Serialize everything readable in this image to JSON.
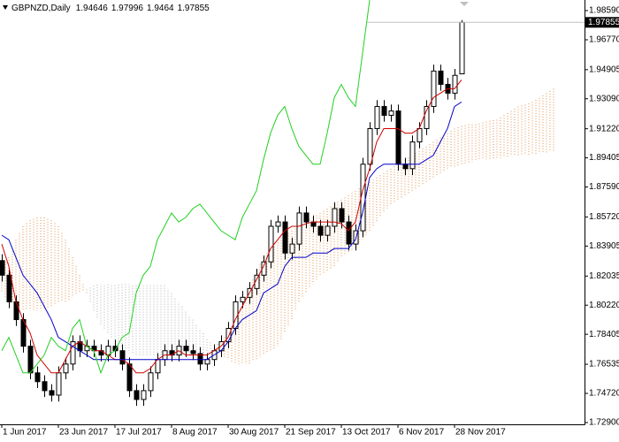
{
  "chart_data": {
    "type": "candlestick",
    "title": "GBPNZD,Daily",
    "categories": [
      "1 Jun 2017",
      null,
      null,
      null,
      null,
      null,
      null,
      null,
      "23 Jun 2017",
      null,
      null,
      null,
      null,
      null,
      null,
      null,
      "17 Jul 2017",
      null,
      null,
      null,
      null,
      null,
      null,
      null,
      "8 Aug 2017",
      null,
      null,
      null,
      null,
      null,
      null,
      null,
      "30 Aug 2017",
      null,
      null,
      null,
      null,
      null,
      null,
      null,
      "21 Sep 2017",
      null,
      null,
      null,
      null,
      null,
      null,
      null,
      "13 Oct 2017",
      null,
      null,
      null,
      null,
      null,
      null,
      null,
      "6 Nov 2017",
      null,
      null,
      null,
      null,
      null,
      null,
      null,
      "28 Nov 2017",
      null
    ],
    "open": [
      1.83,
      1.8209,
      1.8043,
      1.7932,
      1.7766,
      1.76,
      1.7545,
      1.7489,
      1.7461,
      1.76,
      1.7655,
      1.7794,
      1.7738,
      1.7766,
      1.7738,
      1.7711,
      1.7766,
      1.7738,
      1.7655,
      1.7489,
      1.7434,
      1.7489,
      1.76,
      1.7683,
      1.7738,
      1.7711,
      1.7766,
      1.7738,
      1.772,
      1.7655,
      1.7683,
      1.7738,
      1.7794,
      1.7877,
      1.8043,
      1.8071,
      1.8126,
      1.8209,
      1.8292,
      1.8514,
      1.8541,
      1.8347,
      1.8403,
      1.8597,
      1.8541,
      1.8514,
      1.8458,
      1.8514,
      1.8624,
      1.8541,
      1.8403,
      1.8486,
      1.8901,
      1.9123,
      1.9261,
      1.9206,
      1.9233,
      1.8901,
      1.8873,
      1.904,
      1.9123,
      1.9261,
      1.9482,
      1.9399,
      1.9344,
      1.94646
    ],
    "high": [
      1.834,
      1.8249,
      1.8083,
      1.7972,
      1.7806,
      1.764,
      1.7585,
      1.7529,
      1.764,
      1.7695,
      1.7834,
      1.7834,
      1.7806,
      1.7806,
      1.7778,
      1.7806,
      1.7806,
      1.7778,
      1.7695,
      1.7529,
      1.7529,
      1.764,
      1.7723,
      1.7778,
      1.7778,
      1.7806,
      1.7806,
      1.7778,
      1.776,
      1.7723,
      1.7778,
      1.7834,
      1.7917,
      1.8083,
      1.8111,
      1.8166,
      1.8249,
      1.8332,
      1.8554,
      1.8581,
      1.8581,
      1.8443,
      1.8637,
      1.8637,
      1.8581,
      1.8554,
      1.8554,
      1.8664,
      1.8664,
      1.8581,
      1.8526,
      1.8941,
      1.9163,
      1.9301,
      1.9301,
      1.9273,
      1.9273,
      1.8941,
      1.908,
      1.9163,
      1.9301,
      1.9522,
      1.9522,
      1.9439,
      1.9495,
      1.97996
    ],
    "low": [
      1.8169,
      1.8003,
      1.7892,
      1.7726,
      1.756,
      1.7505,
      1.7449,
      1.7421,
      1.7421,
      1.756,
      1.7615,
      1.7698,
      1.7698,
      1.7698,
      1.7671,
      1.7671,
      1.7698,
      1.7615,
      1.7449,
      1.7394,
      1.7394,
      1.7449,
      1.756,
      1.7643,
      1.7671,
      1.7671,
      1.7698,
      1.768,
      1.7615,
      1.7615,
      1.7643,
      1.7698,
      1.7754,
      1.7837,
      1.8003,
      1.8031,
      1.8086,
      1.8169,
      1.8252,
      1.8474,
      1.8307,
      1.8307,
      1.8363,
      1.8501,
      1.8474,
      1.8418,
      1.8418,
      1.8474,
      1.8501,
      1.8363,
      1.8363,
      1.8446,
      1.8861,
      1.9083,
      1.9166,
      1.9166,
      1.8861,
      1.8833,
      1.8833,
      1.9,
      1.9083,
      1.9221,
      1.9359,
      1.9304,
      1.9304,
      1.9464
    ],
    "close": [
      1.8209,
      1.8043,
      1.7932,
      1.7766,
      1.76,
      1.7545,
      1.7489,
      1.7461,
      1.76,
      1.7655,
      1.7794,
      1.7738,
      1.7766,
      1.7738,
      1.7711,
      1.7766,
      1.7738,
      1.7655,
      1.7489,
      1.7434,
      1.7489,
      1.76,
      1.7683,
      1.7738,
      1.7711,
      1.7766,
      1.7738,
      1.772,
      1.7655,
      1.7683,
      1.7738,
      1.7794,
      1.7877,
      1.8043,
      1.8071,
      1.8126,
      1.8209,
      1.8292,
      1.8514,
      1.8541,
      1.8347,
      1.8403,
      1.8597,
      1.8541,
      1.8514,
      1.8458,
      1.8514,
      1.8624,
      1.8541,
      1.8403,
      1.8486,
      1.8901,
      1.9123,
      1.9261,
      1.9206,
      1.9233,
      1.8901,
      1.8873,
      1.904,
      1.9123,
      1.9261,
      1.9482,
      1.9399,
      1.9344,
      1.9455,
      1.97855
    ],
    "bull_color": "#ffffff",
    "bear_color": "#000000",
    "series": [
      {
        "color": "#d00000",
        "values": [
          1.8403,
          1.8264,
          1.8043,
          1.7932,
          1.7849,
          1.7711,
          1.7655,
          1.76,
          1.76,
          1.7683,
          1.7766,
          1.7794,
          1.7766,
          1.7738,
          1.7738,
          1.7711,
          1.7683,
          1.7683,
          1.7655,
          1.76,
          1.76,
          1.7627,
          1.7683,
          1.7711,
          1.7711,
          1.7738,
          1.7711,
          1.7711,
          1.7711,
          1.7711,
          1.7738,
          1.7766,
          1.7821,
          1.7932,
          1.8015,
          1.8098,
          1.8181,
          1.8264,
          1.8375,
          1.843,
          1.8486,
          1.8514,
          1.8514,
          1.853,
          1.8541,
          1.8541,
          1.8541,
          1.8541,
          1.853,
          1.8486,
          1.8541,
          1.8735,
          1.8873,
          1.904,
          1.9123,
          1.9123,
          1.9123,
          1.9095,
          1.9095,
          1.9123,
          1.9233,
          1.9316,
          1.9344,
          1.9372,
          1.9372,
          1.9427
        ]
      },
      {
        "color": "#0000c8",
        "values": [
          1.8458,
          1.843,
          1.832,
          1.8209,
          1.8154,
          1.8098,
          1.8015,
          1.7932,
          1.7821,
          1.7794,
          1.7766,
          1.7738,
          1.7711,
          1.7683,
          1.7683,
          1.7683,
          1.7683,
          1.7683,
          1.7683,
          1.7683,
          1.7683,
          1.7683,
          1.7683,
          1.7683,
          1.7683,
          1.7683,
          1.7683,
          1.7683,
          1.7683,
          1.7683,
          1.7711,
          1.7738,
          1.7794,
          1.7877,
          1.7932,
          1.796,
          1.7988,
          1.8098,
          1.8126,
          1.8154,
          1.8264,
          1.832,
          1.832,
          1.832,
          1.8347,
          1.8347,
          1.8347,
          1.8375,
          1.8375,
          1.8375,
          1.843,
          1.8597,
          1.8818,
          1.8873,
          1.8901,
          1.8901,
          1.8901,
          1.8901,
          1.8901,
          1.8901,
          1.8929,
          1.8956,
          1.904,
          1.9123,
          1.9261,
          1.9289
        ]
      },
      {
        "color": "#22d022",
        "values": [
          1.7738,
          1.7821,
          1.7711,
          1.76,
          1.76,
          1.7655,
          1.7711,
          1.7821,
          1.7766,
          1.7738,
          1.7877,
          1.7932,
          1.7766,
          1.7738,
          1.76,
          1.7711,
          1.7738,
          1.7821,
          1.7849,
          1.8098,
          1.8209,
          1.8264,
          1.843,
          1.8514,
          1.8597,
          1.8541,
          1.8569,
          1.8624,
          1.8652,
          1.8597,
          1.8541,
          1.8486,
          1.8458,
          1.843,
          1.8569,
          1.8652,
          1.8735,
          1.8929,
          1.9095,
          1.9206,
          1.9261,
          1.9123,
          1.9012,
          1.8956,
          1.8901,
          1.8901,
          1.9095,
          1.9316,
          1.9399,
          1.9316,
          1.9261,
          1.9593,
          1.9925,
          null,
          null,
          null,
          null,
          null,
          null,
          null,
          null,
          null,
          null,
          null,
          null,
          null
        ]
      }
    ],
    "cloud": {
      "colors": [
        "#e0904a",
        "#b0b0b0"
      ],
      "span_a": [
        1.8264,
        1.832,
        1.843,
        1.8514,
        1.8552,
        1.8569,
        1.8569,
        1.8552,
        1.8514,
        1.843,
        1.832,
        1.8209,
        1.8098,
        1.7988,
        1.7904,
        1.7849,
        1.7794,
        1.7766,
        1.7738,
        1.7711,
        1.7711,
        1.7711,
        1.7711,
        1.7711,
        1.7711,
        1.7711,
        1.7711,
        1.7711,
        1.7711,
        1.7738,
        1.7766,
        1.7794,
        1.7849,
        1.7932,
        1.8015,
        1.8126,
        1.8237,
        1.832,
        1.8375,
        1.843,
        1.8458,
        1.8486,
        1.8514,
        1.8541,
        1.8569,
        1.8597,
        1.8624,
        1.8652,
        1.868,
        1.8707,
        1.8735,
        1.8763,
        1.879,
        1.8818,
        1.8846,
        1.8873,
        1.8901,
        1.8929,
        1.8956,
        1.8984,
        1.9012,
        1.904,
        1.9067,
        1.9095,
        1.9123,
        1.9139,
        1.915,
        1.915,
        1.9161,
        1.9172,
        1.9178,
        1.9206,
        1.9233,
        1.9261,
        1.9272,
        1.9289,
        1.9316,
        1.9344,
        1.9372
      ],
      "span_b": [
        1.8098,
        1.8043,
        1.8015,
        1.7988,
        1.7988,
        1.7988,
        1.7988,
        1.8015,
        1.8043,
        1.8043,
        1.8071,
        1.8098,
        1.8126,
        1.8154,
        1.8154,
        1.8154,
        1.8154,
        1.8154,
        1.8154,
        1.8154,
        1.8154,
        1.8154,
        1.8154,
        1.8154,
        1.8098,
        1.8043,
        1.7988,
        1.7932,
        1.7877,
        1.7821,
        1.7766,
        1.7711,
        1.7683,
        1.7655,
        1.7655,
        1.7655,
        1.7683,
        1.7711,
        1.7738,
        1.7766,
        1.7849,
        1.7932,
        1.8043,
        1.8098,
        1.8154,
        1.8209,
        1.8237,
        1.8264,
        1.832,
        1.8347,
        1.8375,
        1.843,
        1.8486,
        1.8541,
        1.8597,
        1.8652,
        1.868,
        1.8707,
        1.8735,
        1.8763,
        1.879,
        1.8818,
        1.8846,
        1.8873,
        1.8884,
        1.8901,
        1.8912,
        1.8918,
        1.8929,
        1.8934,
        1.894,
        1.894,
        1.8951,
        1.8956,
        1.8956,
        1.8962,
        1.8968,
        1.8973,
        1.8984
      ]
    },
    "ylim": [
      1.7279,
      1.9925
    ],
    "yticks": [
      {
        "value": 1.9859,
        "label": "1.98590"
      },
      {
        "value": 1.9677,
        "label": "1.96770"
      },
      1.94905,
      {
        "value": 1.9309,
        "label": "1.93090"
      },
      {
        "value": 1.9122,
        "label": "1.91220"
      },
      1.89405,
      {
        "value": 1.8759,
        "label": "1.87590"
      },
      {
        "value": 1.8572,
        "label": "1.85720"
      },
      1.83905,
      1.82035,
      {
        "value": 1.8022,
        "label": "1.80220"
      },
      1.78405,
      1.76535,
      {
        "value": 1.7472,
        "label": "1.74720"
      },
      {
        "value": 1.729,
        "label": "1.72900"
      }
    ],
    "grid": false
  }
}
